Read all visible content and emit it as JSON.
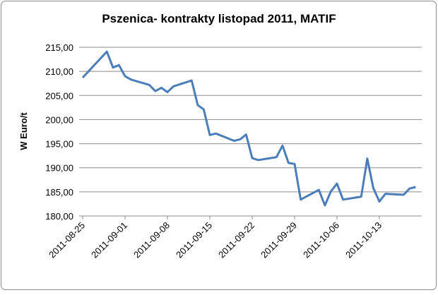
{
  "chart_data": {
    "type": "line",
    "title": "Pszenica- kontrakty listopad 2011, MATIF",
    "y_label": "W Euro/t",
    "x": [
      "2011-08-25",
      "2011-08-29",
      "2011-08-30",
      "2011-08-31",
      "2011-09-01",
      "2011-09-02",
      "2011-09-05",
      "2011-09-06",
      "2011-09-07",
      "2011-09-08",
      "2011-09-09",
      "2011-09-12",
      "2011-09-13",
      "2011-09-14",
      "2011-09-15",
      "2011-09-16",
      "2011-09-19",
      "2011-09-20",
      "2011-09-21",
      "2011-09-22",
      "2011-09-23",
      "2011-09-26",
      "2011-09-27",
      "2011-09-28",
      "2011-09-29",
      "2011-09-30",
      "2011-10-03",
      "2011-10-04",
      "2011-10-05",
      "2011-10-06",
      "2011-10-07",
      "2011-10-10",
      "2011-10-11",
      "2011-10-12",
      "2011-10-13",
      "2011-10-14",
      "2011-10-17",
      "2011-10-18",
      "2011-10-19"
    ],
    "series": [
      {
        "color": "#4a7ebb",
        "values": [
          208.7,
          214.1,
          210.8,
          211.3,
          209.0,
          208.3,
          207.2,
          205.9,
          206.6,
          205.7,
          206.9,
          208.1,
          203.0,
          202.1,
          196.8,
          197.1,
          195.6,
          195.9,
          196.9,
          192.0,
          191.6,
          192.2,
          194.6,
          191.0,
          190.8,
          183.4,
          185.4,
          182.2,
          185.1,
          186.7,
          183.4,
          184.0,
          191.9,
          185.8,
          183.0,
          184.6,
          184.4,
          185.7,
          186.0
        ]
      }
    ],
    "xlim": [
      "2011-08-25",
      "2011-10-20"
    ],
    "xticks": [
      "2011-08-25",
      "2011-09-01",
      "2011-09-08",
      "2011-09-15",
      "2011-09-22",
      "2011-09-29",
      "2011-10-06",
      "2011-10-13"
    ],
    "ylim": [
      180,
      215
    ],
    "yticks": [
      {
        "value": 180,
        "label": "180,00"
      },
      {
        "value": 185,
        "label": "185,00"
      },
      {
        "value": 190,
        "label": "190,00"
      },
      {
        "value": 195,
        "label": "195,00"
      },
      {
        "value": 200,
        "label": "200,00"
      },
      {
        "value": 205,
        "label": "205,00"
      },
      {
        "value": 210,
        "label": "210,00"
      },
      {
        "value": 215,
        "label": "215,00"
      }
    ],
    "grid": true
  }
}
